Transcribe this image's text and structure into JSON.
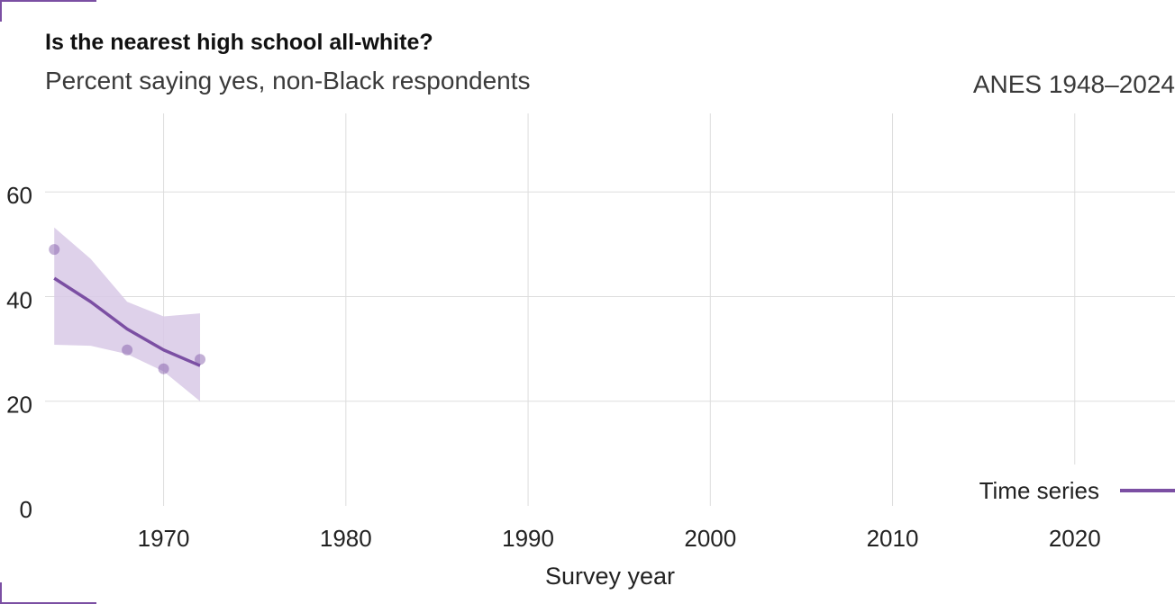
{
  "colors": {
    "accent": "#7b4fa3",
    "band": "#d8c9e6",
    "grid": "#dddddd"
  },
  "chart_data": {
    "type": "line",
    "title": "Is the nearest high school all-white?",
    "subtitle": "Percent saying yes, non-Black respondents",
    "source": "ANES 1948–2024",
    "xlabel": "Survey year",
    "ylabel": "",
    "xlim": [
      1963,
      2025.5
    ],
    "ylim": [
      0,
      75
    ],
    "xticks": [
      1970,
      1980,
      1990,
      2000,
      2010,
      2020
    ],
    "yticks": [
      0,
      20,
      40,
      60
    ],
    "grid": true,
    "legend": {
      "placement": "bottom-right",
      "entries": [
        {
          "label": "Time series"
        }
      ]
    },
    "points": [
      {
        "x": 1964,
        "y": 49
      },
      {
        "x": 1968,
        "y": 29.8
      },
      {
        "x": 1970,
        "y": 26.2
      },
      {
        "x": 1972,
        "y": 28
      }
    ],
    "trend": [
      {
        "x": 1964,
        "y": 43.5
      },
      {
        "x": 1966,
        "y": 39
      },
      {
        "x": 1968,
        "y": 33.8
      },
      {
        "x": 1970,
        "y": 29.8
      },
      {
        "x": 1972,
        "y": 26.8
      }
    ],
    "band": {
      "upper": [
        {
          "x": 1964,
          "y": 53.2
        },
        {
          "x": 1966,
          "y": 47.2
        },
        {
          "x": 1968,
          "y": 39
        },
        {
          "x": 1970,
          "y": 36.2
        },
        {
          "x": 1972,
          "y": 36.8
        }
      ],
      "lower": [
        {
          "x": 1964,
          "y": 30.8
        },
        {
          "x": 1966,
          "y": 30.6
        },
        {
          "x": 1968,
          "y": 29
        },
        {
          "x": 1970,
          "y": 25.7
        },
        {
          "x": 1972,
          "y": 20
        }
      ]
    }
  }
}
